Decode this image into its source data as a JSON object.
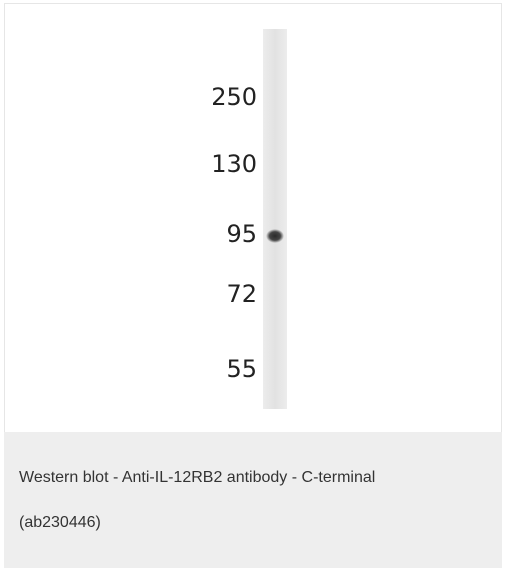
{
  "blot": {
    "markers": [
      "250",
      "130",
      "95",
      "72",
      "55"
    ]
  },
  "caption": "Western blot - Anti-IL-12RB2 antibody - C-terminal (ab230446)"
}
